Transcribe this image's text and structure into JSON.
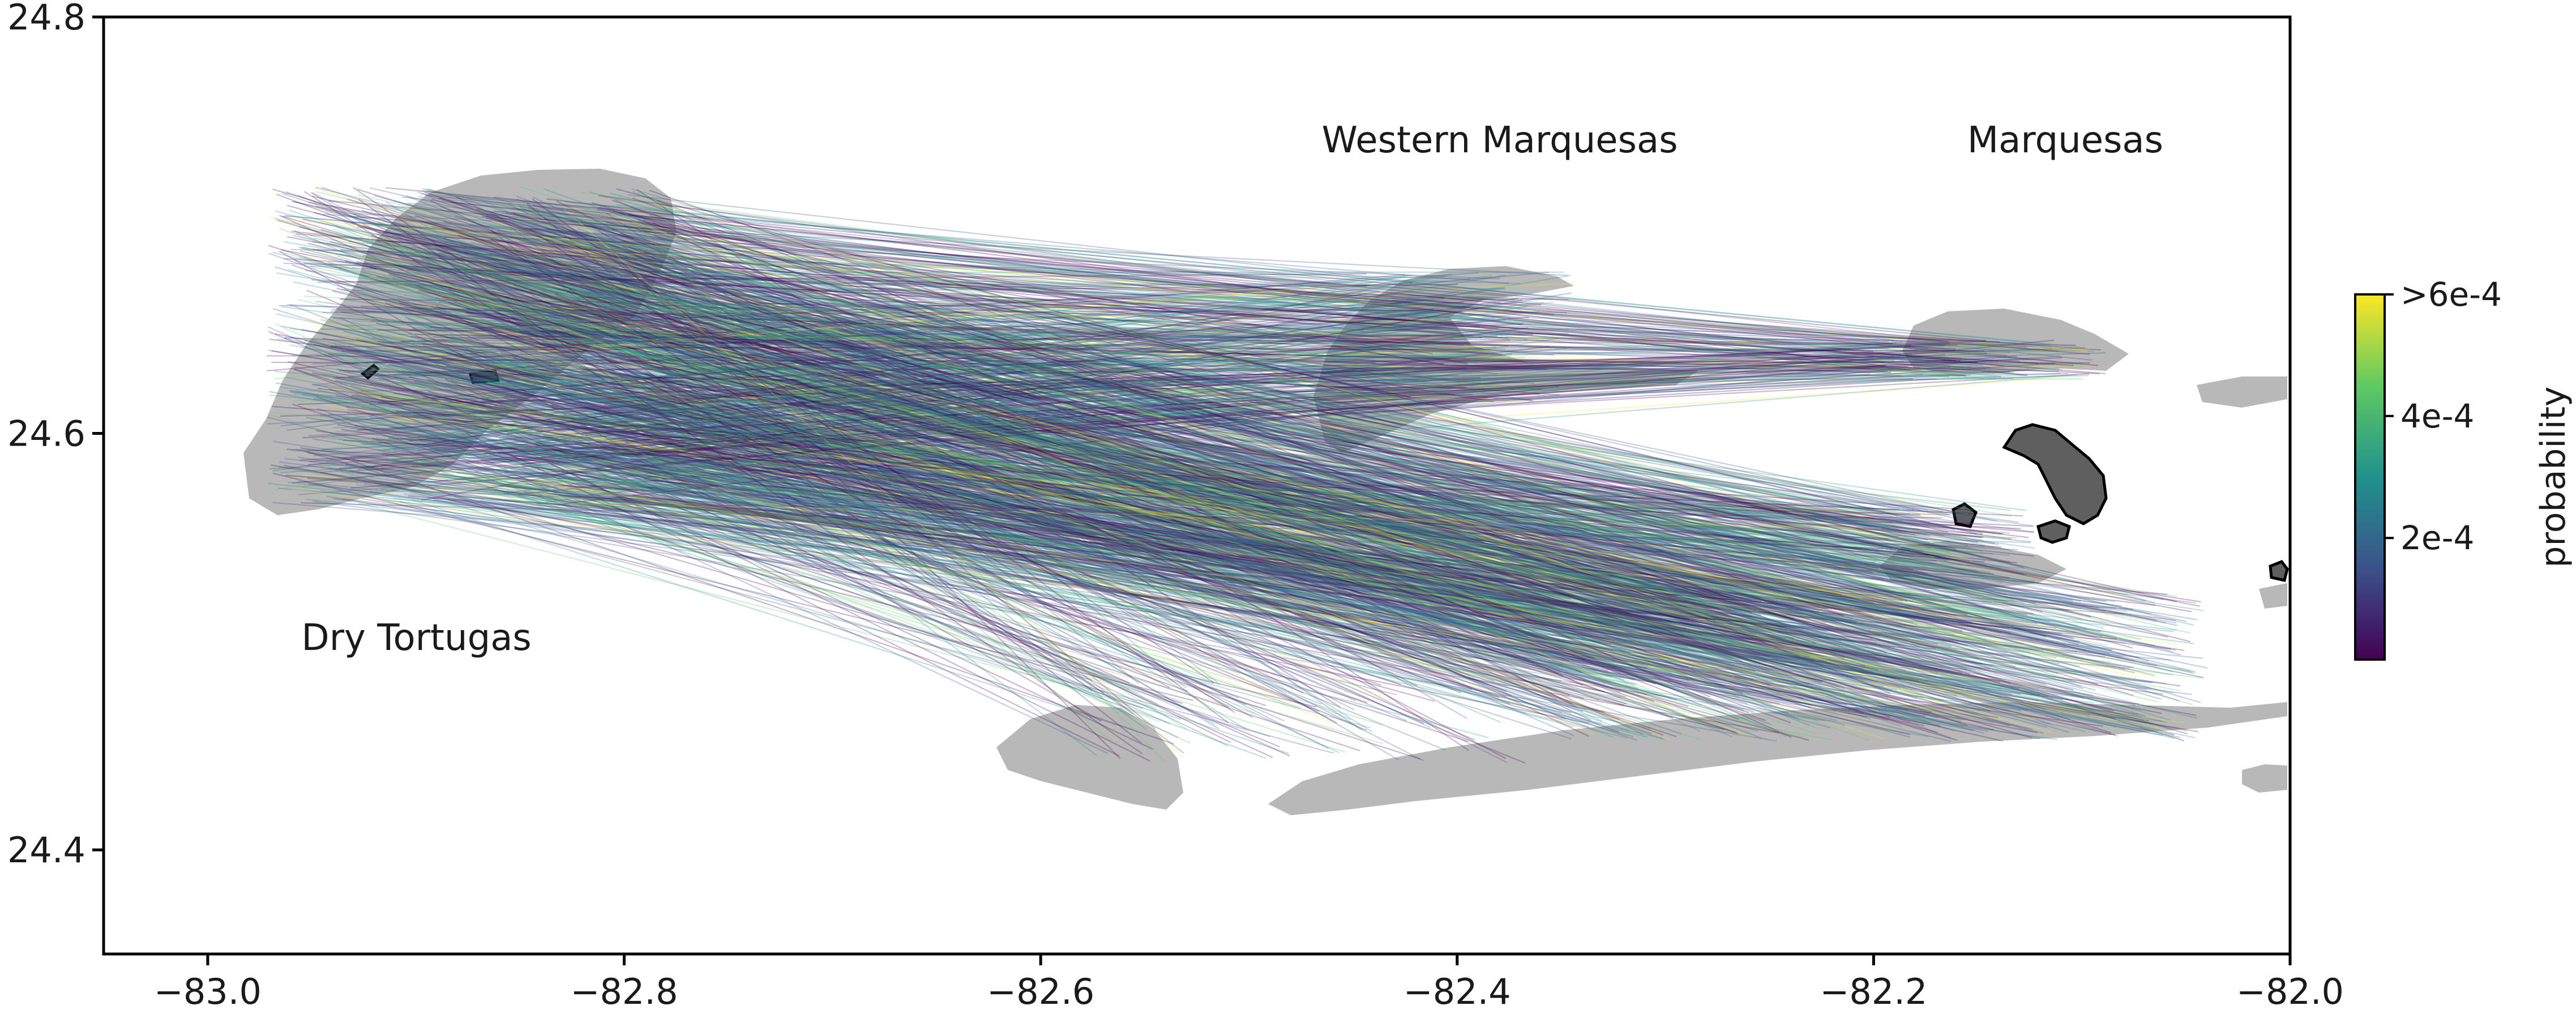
{
  "chart_data": {
    "type": "map",
    "xlim": [
      -83.05,
      -82.0
    ],
    "ylim": [
      24.35,
      24.8
    ],
    "x_ticks": [
      {
        "value": -83.0,
        "label": "−83.0"
      },
      {
        "value": -82.8,
        "label": "−82.8"
      },
      {
        "value": -82.6,
        "label": "−82.6"
      },
      {
        "value": -82.4,
        "label": "−82.4"
      },
      {
        "value": -82.2,
        "label": "−82.2"
      },
      {
        "value": -82.0,
        "label": "−82.0"
      }
    ],
    "y_ticks": [
      {
        "value": 24.4,
        "label": "24.4"
      },
      {
        "value": 24.6,
        "label": "24.6"
      },
      {
        "value": 24.8,
        "label": "24.8"
      }
    ],
    "grid": false,
    "place_labels": [
      {
        "text": "Dry Tortugas",
        "lon": -82.955,
        "lat": 24.496
      },
      {
        "text": "Western Marquesas",
        "lon": -82.465,
        "lat": 24.735
      },
      {
        "text": "Marquesas",
        "lon": -82.155,
        "lat": 24.735
      }
    ],
    "colorbar": {
      "title": "probability",
      "colormap": "viridis",
      "ticks": [
        "2e-4",
        "4e-4",
        ">6e-4"
      ],
      "tick_fractions": [
        0.333,
        0.667,
        1.0
      ],
      "colors": [
        "#440154",
        "#3b528b",
        "#21918c",
        "#5ec962",
        "#fde725"
      ]
    },
    "reef_color": "#b8b8b8",
    "island_color": "#5f5f5f"
  }
}
